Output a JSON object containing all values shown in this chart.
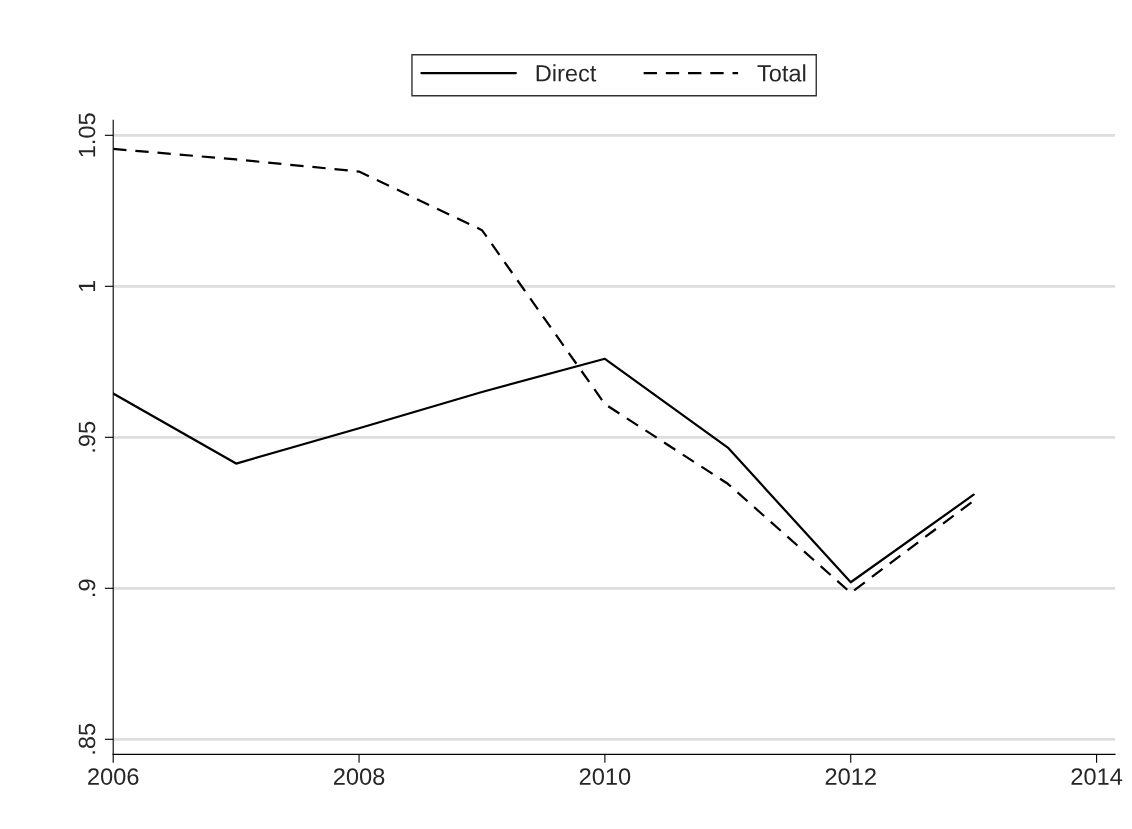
{
  "chart_data": {
    "type": "line",
    "x": [
      2006,
      2007,
      2008,
      2009,
      2010,
      2011,
      2012,
      2013
    ],
    "series": [
      {
        "name": "Direct",
        "color": "#000000",
        "line_style": "solid",
        "values": [
          0.9645,
          0.9413,
          0.953,
          0.965,
          0.976,
          0.9466,
          0.902,
          0.931
        ]
      },
      {
        "name": "Total",
        "color": "#000000",
        "line_style": "dashed",
        "values": [
          1.0455,
          1.042,
          1.038,
          1.0186,
          0.961,
          0.9346,
          0.8985,
          0.929
        ]
      }
    ],
    "xlim": [
      2006,
      2014.15
    ],
    "xticks": [
      2006,
      2008,
      2010,
      2012,
      2014
    ],
    "ylim": [
      0.845,
      1.055
    ],
    "yticks": [
      {
        "value": 0.85,
        "label": ".85"
      },
      {
        "value": 0.9,
        "label": ".9"
      },
      {
        "value": 0.95,
        "label": ".95"
      },
      {
        "value": 1,
        "label": "1"
      },
      {
        "value": 1.05,
        "label": "1.05"
      }
    ],
    "grid": "y",
    "legend": "top"
  }
}
